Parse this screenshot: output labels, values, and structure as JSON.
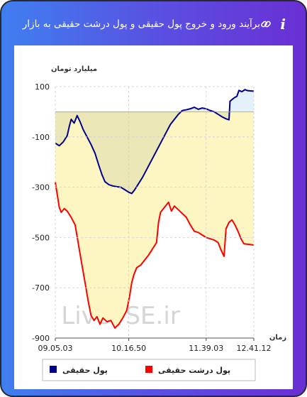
{
  "header": {
    "title": "برآیند ورود و خروج پول حقیقی و پول درشت حقیقی به بازار",
    "info_icon": "i"
  },
  "colors": {
    "real_money": "#00008b",
    "big_real_money": "#ff0000",
    "area_fill": "#fdf6c3",
    "positive_fill": "#e4f0fa"
  },
  "chart_data": {
    "type": "line",
    "ylabel": "میلیارد تومان",
    "xlabel": "زمان",
    "ylim": [
      -900,
      100
    ],
    "y_ticks": [
      "100",
      "-100",
      "-300",
      "-500",
      "-700",
      "-900"
    ],
    "x_tick_labels": [
      "09.05.03",
      "10.16.50",
      "11.39.03",
      "12.41.12"
    ],
    "watermark": "LiveTSE.ir",
    "series": [
      {
        "name": "پول حقیقی",
        "points": [
          [
            0,
            -125
          ],
          [
            0.02,
            -135
          ],
          [
            0.04,
            -120
          ],
          [
            0.06,
            -95
          ],
          [
            0.07,
            -60
          ],
          [
            0.08,
            -30
          ],
          [
            0.095,
            -45
          ],
          [
            0.11,
            -15
          ],
          [
            0.125,
            -40
          ],
          [
            0.14,
            -70
          ],
          [
            0.16,
            -100
          ],
          [
            0.18,
            -130
          ],
          [
            0.2,
            -165
          ],
          [
            0.22,
            -215
          ],
          [
            0.235,
            -250
          ],
          [
            0.25,
            -278
          ],
          [
            0.27,
            -290
          ],
          [
            0.29,
            -295
          ],
          [
            0.31,
            -298
          ],
          [
            0.33,
            -300
          ],
          [
            0.35,
            -310
          ],
          [
            0.37,
            -320
          ],
          [
            0.385,
            -325
          ],
          [
            0.4,
            -310
          ],
          [
            0.42,
            -285
          ],
          [
            0.44,
            -260
          ],
          [
            0.46,
            -230
          ],
          [
            0.48,
            -200
          ],
          [
            0.5,
            -170
          ],
          [
            0.52,
            -140
          ],
          [
            0.54,
            -110
          ],
          [
            0.56,
            -80
          ],
          [
            0.58,
            -50
          ],
          [
            0.6,
            -30
          ],
          [
            0.62,
            -10
          ],
          [
            0.64,
            5
          ],
          [
            0.66,
            8
          ],
          [
            0.68,
            12
          ],
          [
            0.7,
            18
          ],
          [
            0.72,
            10
          ],
          [
            0.74,
            15
          ],
          [
            0.76,
            12
          ],
          [
            0.78,
            5
          ],
          [
            0.8,
            0
          ],
          [
            0.82,
            -10
          ],
          [
            0.84,
            -20
          ],
          [
            0.86,
            -28
          ],
          [
            0.875,
            -32
          ],
          [
            0.88,
            42
          ],
          [
            0.9,
            55
          ],
          [
            0.915,
            62
          ],
          [
            0.925,
            85
          ],
          [
            0.94,
            80
          ],
          [
            0.955,
            88
          ],
          [
            0.97,
            84
          ],
          [
            1.0,
            82
          ]
        ]
      },
      {
        "name": "پول درشت حقیقی",
        "points": [
          [
            0,
            -280
          ],
          [
            0.01,
            -330
          ],
          [
            0.02,
            -380
          ],
          [
            0.03,
            -400
          ],
          [
            0.045,
            -385
          ],
          [
            0.06,
            -395
          ],
          [
            0.08,
            -420
          ],
          [
            0.1,
            -450
          ],
          [
            0.115,
            -520
          ],
          [
            0.13,
            -590
          ],
          [
            0.15,
            -680
          ],
          [
            0.165,
            -750
          ],
          [
            0.18,
            -810
          ],
          [
            0.195,
            -830
          ],
          [
            0.21,
            -815
          ],
          [
            0.225,
            -845
          ],
          [
            0.24,
            -820
          ],
          [
            0.26,
            -835
          ],
          [
            0.28,
            -830
          ],
          [
            0.3,
            -860
          ],
          [
            0.32,
            -845
          ],
          [
            0.34,
            -820
          ],
          [
            0.36,
            -790
          ],
          [
            0.375,
            -730
          ],
          [
            0.385,
            -680
          ],
          [
            0.395,
            -650
          ],
          [
            0.41,
            -620
          ],
          [
            0.43,
            -610
          ],
          [
            0.45,
            -590
          ],
          [
            0.47,
            -570
          ],
          [
            0.49,
            -545
          ],
          [
            0.51,
            -520
          ],
          [
            0.52,
            -440
          ],
          [
            0.53,
            -400
          ],
          [
            0.55,
            -380
          ],
          [
            0.57,
            -360
          ],
          [
            0.585,
            -395
          ],
          [
            0.6,
            -375
          ],
          [
            0.62,
            -390
          ],
          [
            0.64,
            -405
          ],
          [
            0.66,
            -420
          ],
          [
            0.68,
            -450
          ],
          [
            0.7,
            -475
          ],
          [
            0.72,
            -480
          ],
          [
            0.74,
            -490
          ],
          [
            0.76,
            -500
          ],
          [
            0.78,
            -505
          ],
          [
            0.8,
            -510
          ],
          [
            0.82,
            -520
          ],
          [
            0.835,
            -550
          ],
          [
            0.85,
            -575
          ],
          [
            0.855,
            -520
          ],
          [
            0.86,
            -465
          ],
          [
            0.875,
            -440
          ],
          [
            0.89,
            -430
          ],
          [
            0.905,
            -450
          ],
          [
            0.92,
            -475
          ],
          [
            0.935,
            -505
          ],
          [
            0.95,
            -525
          ],
          [
            1.0,
            -530
          ]
        ]
      }
    ],
    "legend": {
      "placement": "bottom"
    }
  }
}
